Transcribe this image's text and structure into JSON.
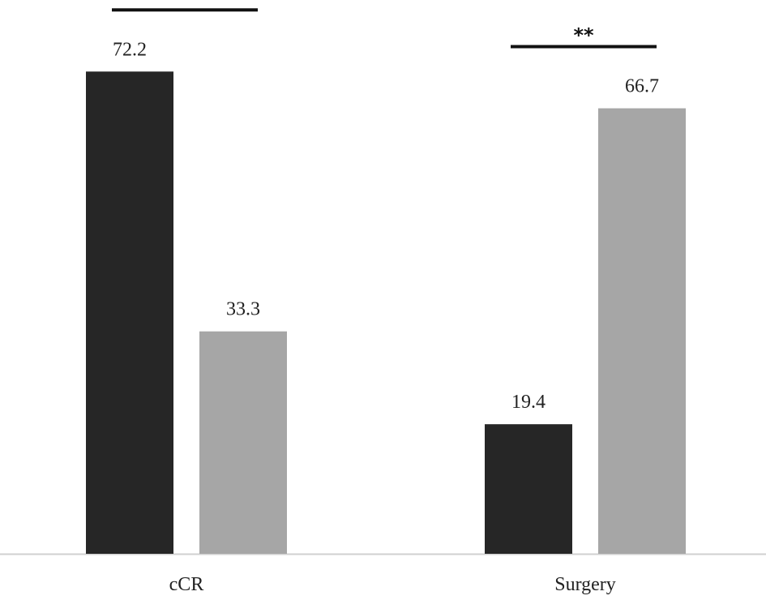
{
  "chart_data": {
    "type": "bar",
    "title": "",
    "xlabel": "",
    "ylabel": "",
    "categories": [
      "cCR",
      "Surgery"
    ],
    "series": [
      {
        "color": "#262626",
        "values": [
          72.2,
          19.4
        ]
      },
      {
        "color": "#a6a6a6",
        "values": [
          33.3,
          66.7
        ]
      }
    ],
    "ylim": [
      0,
      80
    ],
    "grid": false,
    "legend": "none",
    "significance": [
      {
        "category": "cCR",
        "label": "*"
      },
      {
        "category": "Surgery",
        "label": "**"
      }
    ],
    "axis_color": "#d0d0d0"
  }
}
